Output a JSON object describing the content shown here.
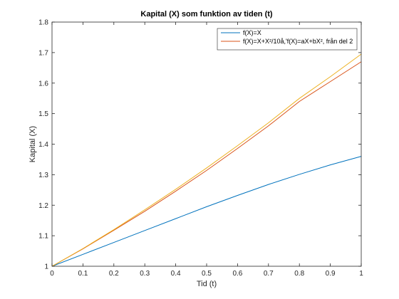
{
  "chart_data": {
    "type": "line",
    "title": "Kapital (X) som funktion av tiden (t)",
    "xlabel": "Tid (t)",
    "ylabel": "Kapital (X)",
    "xlim": [
      0,
      1
    ],
    "ylim": [
      1,
      1.8
    ],
    "xticks": [
      0,
      0.1,
      0.2,
      0.3,
      0.4,
      0.5,
      0.6,
      0.7,
      0.8,
      0.9,
      1
    ],
    "xtick_labels": [
      "0",
      "0.1",
      "0.2",
      "0.3",
      "0.4",
      "0.5",
      "0.6",
      "0.7",
      "0.8",
      "0.9",
      "1"
    ],
    "yticks": [
      1,
      1.1,
      1.2,
      1.3,
      1.4,
      1.5,
      1.6,
      1.7,
      1.8
    ],
    "ytick_labels": [
      "1",
      "1.1",
      "1.2",
      "1.3",
      "1.4",
      "1.5",
      "1.6",
      "1.7",
      "1.8"
    ],
    "grid": false,
    "legend_position": "top-right",
    "x": [
      0,
      0.1,
      0.2,
      0.3,
      0.4,
      0.5,
      0.6,
      0.7,
      0.8,
      0.9,
      1.0
    ],
    "series": [
      {
        "name": "f(X)=X",
        "color": "#0072BD",
        "values": [
          1.0,
          1.039,
          1.078,
          1.117,
          1.156,
          1.195,
          1.232,
          1.268,
          1.301,
          1.332,
          1.36
        ]
      },
      {
        "name": "f(X)=X+X²/10å,'f(X)=aX+bX², från del 2",
        "color": "#D95319",
        "values": [
          1.0,
          1.057,
          1.118,
          1.18,
          1.246,
          1.314,
          1.386,
          1.46,
          1.54,
          1.605,
          1.67
        ]
      },
      {
        "name": "",
        "color": "#EDB120",
        "values": [
          1.0,
          1.058,
          1.12,
          1.185,
          1.252,
          1.322,
          1.395,
          1.47,
          1.55,
          1.621,
          1.695
        ]
      }
    ]
  }
}
